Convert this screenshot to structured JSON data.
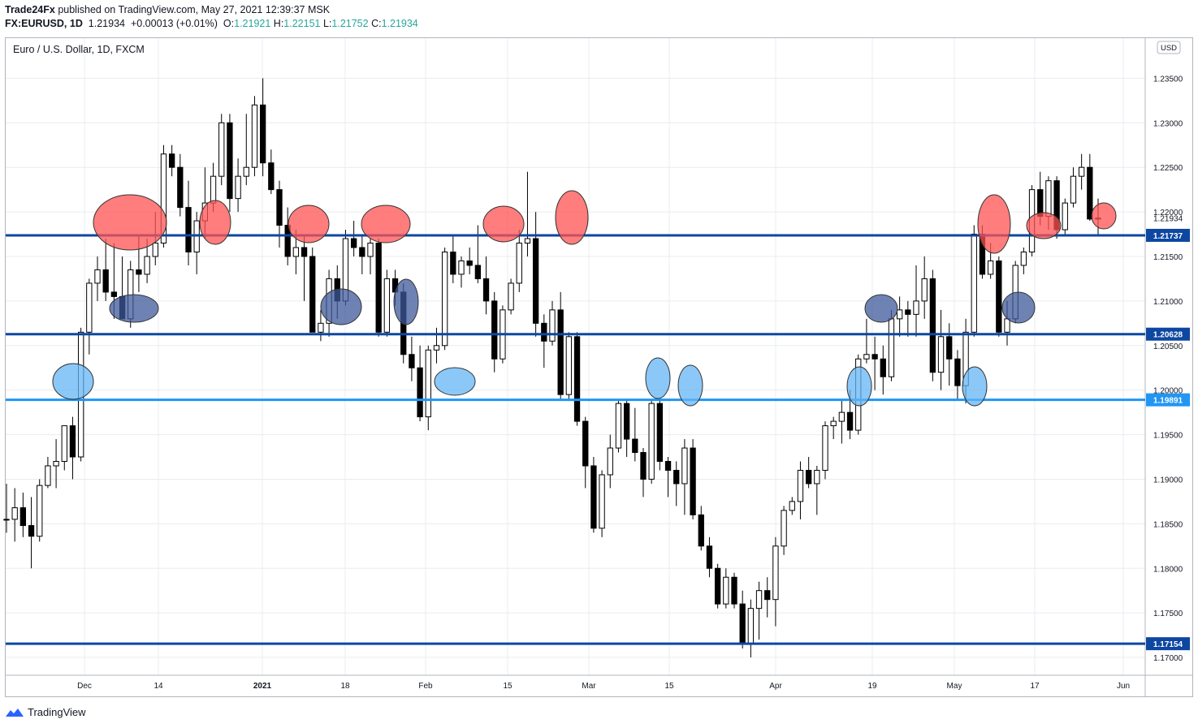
{
  "header": {
    "author": "Trade24Fx",
    "published_text": "published on TradingView.com, May 27, 2021 12:39:37 MSK",
    "symbol": "FX:EURUSD, 1D",
    "last": "1.21934",
    "change": "+0.00013 (+0.01%)",
    "o_label": "O:",
    "o": "1.21921",
    "h_label": "H:",
    "h": "1.22151",
    "l_label": "L:",
    "l": "1.21752",
    "c_label": "C:",
    "c": "1.21934"
  },
  "chart_title": "Euro / U.S. Dollar, 1D, FXCM",
  "currency_badge": "USD",
  "footer": {
    "brand": "TradingView",
    "logo_icon": "tradingview-logo-icon"
  },
  "colors": {
    "level_dark": "#0d47a1",
    "level_light": "#2196f3",
    "red_zone": "#ff5252",
    "dark_blue_zone": "#3d5a99",
    "light_blue_zone": "#64b5f6",
    "grid": "#e8ecf0"
  },
  "chart_data": {
    "type": "candlestick",
    "ylim": [
      1.168,
      1.2395
    ],
    "y_ticks": [
      "1.23500",
      "1.23000",
      "1.22500",
      "1.22000",
      "1.21500",
      "1.21000",
      "1.20500",
      "1.20000",
      "1.19500",
      "1.19000",
      "1.18500",
      "1.18000",
      "1.17500",
      "1.17000"
    ],
    "x_ticks": [
      "Dec",
      "14",
      "2021",
      "18",
      "Feb",
      "15",
      "Mar",
      "15",
      "Apr",
      "19",
      "May",
      "17",
      "Jun"
    ],
    "levels": [
      {
        "value": 1.21737,
        "label": "1.21737",
        "style": "dark"
      },
      {
        "value": 1.20628,
        "label": "1.20628",
        "style": "dark"
      },
      {
        "value": 1.19891,
        "label": "1.19891",
        "style": "light"
      },
      {
        "value": 1.17154,
        "label": "1.17154",
        "style": "dark"
      }
    ],
    "price_label": {
      "value": 1.21934,
      "label": "1.21934"
    },
    "candles": [
      [
        1.1855,
        1.1895,
        1.184,
        1.1855
      ],
      [
        1.1855,
        1.189,
        1.183,
        1.1868
      ],
      [
        1.1868,
        1.1885,
        1.1835,
        1.1848
      ],
      [
        1.1848,
        1.188,
        1.18,
        1.1836
      ],
      [
        1.1836,
        1.19,
        1.183,
        1.1893
      ],
      [
        1.1893,
        1.1925,
        1.189,
        1.1915
      ],
      [
        1.1915,
        1.1945,
        1.189,
        1.192
      ],
      [
        1.192,
        1.196,
        1.191,
        1.196
      ],
      [
        1.196,
        1.197,
        1.19,
        1.1925
      ],
      [
        1.1925,
        1.207,
        1.192,
        1.2065
      ],
      [
        1.2065,
        1.2125,
        1.204,
        1.212
      ],
      [
        1.212,
        1.215,
        1.21,
        1.2135
      ],
      [
        1.2135,
        1.217,
        1.21,
        1.211
      ],
      [
        1.211,
        1.2165,
        1.208,
        1.2105
      ],
      [
        1.2105,
        1.215,
        1.208,
        1.208
      ],
      [
        1.208,
        1.2145,
        1.207,
        1.2135
      ],
      [
        1.2135,
        1.2175,
        1.211,
        1.213
      ],
      [
        1.213,
        1.217,
        1.212,
        1.215
      ],
      [
        1.215,
        1.22,
        1.214,
        1.2165
      ],
      [
        1.2165,
        1.2275,
        1.216,
        1.2265
      ],
      [
        1.2265,
        1.2275,
        1.224,
        1.225
      ],
      [
        1.225,
        1.2265,
        1.2195,
        1.2205
      ],
      [
        1.2205,
        1.2235,
        1.214,
        1.2155
      ],
      [
        1.2155,
        1.22,
        1.213,
        1.219
      ],
      [
        1.219,
        1.225,
        1.217,
        1.221
      ],
      [
        1.221,
        1.2255,
        1.22,
        1.224
      ],
      [
        1.224,
        1.231,
        1.223,
        1.23
      ],
      [
        1.23,
        1.231,
        1.22,
        1.2215
      ],
      [
        1.2215,
        1.226,
        1.22,
        1.224
      ],
      [
        1.224,
        1.231,
        1.223,
        1.225
      ],
      [
        1.225,
        1.233,
        1.224,
        1.232
      ],
      [
        1.232,
        1.235,
        1.224,
        1.2255
      ],
      [
        1.2255,
        1.227,
        1.222,
        1.2225
      ],
      [
        1.2225,
        1.2235,
        1.216,
        1.2185
      ],
      [
        1.2185,
        1.2205,
        1.214,
        1.215
      ],
      [
        1.215,
        1.218,
        1.213,
        1.216
      ],
      [
        1.216,
        1.2175,
        1.21,
        1.215
      ],
      [
        1.215,
        1.216,
        1.207,
        1.2065
      ],
      [
        1.2065,
        1.209,
        1.2055,
        1.2075
      ],
      [
        1.2075,
        1.2135,
        1.206,
        1.2125
      ],
      [
        1.2125,
        1.214,
        1.208,
        1.21
      ],
      [
        1.21,
        1.218,
        1.2095,
        1.217
      ],
      [
        1.217,
        1.219,
        1.215,
        1.216
      ],
      [
        1.216,
        1.2175,
        1.213,
        1.215
      ],
      [
        1.215,
        1.217,
        1.213,
        1.2165
      ],
      [
        1.2165,
        1.217,
        1.206,
        1.2065
      ],
      [
        1.2065,
        1.2135,
        1.206,
        1.2125
      ],
      [
        1.2125,
        1.2135,
        1.2095,
        1.211
      ],
      [
        1.211,
        1.212,
        1.203,
        1.204
      ],
      [
        1.204,
        1.206,
        1.201,
        1.2025
      ],
      [
        1.2025,
        1.205,
        1.1965,
        1.197
      ],
      [
        1.197,
        1.205,
        1.1955,
        1.2045
      ],
      [
        1.2045,
        1.207,
        1.203,
        1.205
      ],
      [
        1.205,
        1.216,
        1.2045,
        1.2155
      ],
      [
        1.2155,
        1.2175,
        1.212,
        1.213
      ],
      [
        1.213,
        1.215,
        1.2115,
        1.2145
      ],
      [
        1.2145,
        1.216,
        1.213,
        1.214
      ],
      [
        1.214,
        1.2185,
        1.212,
        1.2125
      ],
      [
        1.2125,
        1.215,
        1.2085,
        1.21
      ],
      [
        1.21,
        1.211,
        1.202,
        1.2035
      ],
      [
        1.2035,
        1.2095,
        1.203,
        1.209
      ],
      [
        1.209,
        1.2125,
        1.2085,
        1.212
      ],
      [
        1.212,
        1.218,
        1.211,
        1.2165
      ],
      [
        1.2165,
        1.2245,
        1.215,
        1.217
      ],
      [
        1.217,
        1.22,
        1.206,
        1.2075
      ],
      [
        1.2075,
        1.2085,
        1.2025,
        1.2055
      ],
      [
        1.2055,
        1.21,
        1.205,
        1.209
      ],
      [
        1.209,
        1.211,
        1.199,
        1.1995
      ],
      [
        1.1995,
        1.2065,
        1.199,
        1.206
      ],
      [
        1.206,
        1.2065,
        1.196,
        1.1965
      ],
      [
        1.1965,
        1.197,
        1.189,
        1.1915
      ],
      [
        1.1915,
        1.1925,
        1.184,
        1.1845
      ],
      [
        1.1845,
        1.191,
        1.1835,
        1.1905
      ],
      [
        1.1905,
        1.195,
        1.189,
        1.1935
      ],
      [
        1.1935,
        1.199,
        1.193,
        1.1985
      ],
      [
        1.1985,
        1.199,
        1.1925,
        1.1945
      ],
      [
        1.1945,
        1.198,
        1.192,
        1.193
      ],
      [
        1.193,
        1.1935,
        1.188,
        1.19
      ],
      [
        1.19,
        1.199,
        1.1895,
        1.1985
      ],
      [
        1.1985,
        1.199,
        1.191,
        1.192
      ],
      [
        1.192,
        1.1925,
        1.188,
        1.191
      ],
      [
        1.191,
        1.192,
        1.187,
        1.1895
      ],
      [
        1.1895,
        1.1945,
        1.186,
        1.1935
      ],
      [
        1.1935,
        1.1945,
        1.1855,
        1.186
      ],
      [
        1.186,
        1.187,
        1.182,
        1.1825
      ],
      [
        1.1825,
        1.1835,
        1.179,
        1.18
      ],
      [
        1.18,
        1.1805,
        1.1755,
        1.176
      ],
      [
        1.176,
        1.18,
        1.1755,
        1.179
      ],
      [
        1.179,
        1.1795,
        1.1755,
        1.176
      ],
      [
        1.176,
        1.1775,
        1.171,
        1.1715
      ],
      [
        1.1715,
        1.1765,
        1.17,
        1.1755
      ],
      [
        1.1755,
        1.1785,
        1.172,
        1.1775
      ],
      [
        1.1775,
        1.179,
        1.1745,
        1.1765
      ],
      [
        1.1765,
        1.1835,
        1.1735,
        1.1825
      ],
      [
        1.1825,
        1.187,
        1.1815,
        1.1865
      ],
      [
        1.1865,
        1.188,
        1.186,
        1.1875
      ],
      [
        1.1875,
        1.192,
        1.1855,
        1.191
      ],
      [
        1.191,
        1.1925,
        1.189,
        1.1895
      ],
      [
        1.1895,
        1.1915,
        1.186,
        1.191
      ],
      [
        1.191,
        1.1965,
        1.19,
        1.196
      ],
      [
        1.196,
        1.197,
        1.1945,
        1.1965
      ],
      [
        1.1965,
        1.199,
        1.194,
        1.1975
      ],
      [
        1.1975,
        1.2,
        1.1945,
        1.1955
      ],
      [
        1.1955,
        1.204,
        1.195,
        1.2035
      ],
      [
        1.2035,
        1.208,
        1.203,
        1.204
      ],
      [
        1.204,
        1.206,
        1.2,
        1.2035
      ],
      [
        1.2035,
        1.205,
        1.1995,
        1.2015
      ],
      [
        1.2015,
        1.209,
        1.201,
        1.208
      ],
      [
        1.208,
        1.2105,
        1.206,
        1.209
      ],
      [
        1.209,
        1.21,
        1.206,
        1.2085
      ],
      [
        1.2085,
        1.214,
        1.206,
        1.21
      ],
      [
        1.21,
        1.215,
        1.208,
        1.2125
      ],
      [
        1.2125,
        1.2135,
        1.201,
        1.202
      ],
      [
        1.202,
        1.209,
        1.2,
        1.206
      ],
      [
        1.206,
        1.2075,
        1.2005,
        1.2035
      ],
      [
        1.2035,
        1.2045,
        1.199,
        1.2005
      ],
      [
        1.2005,
        1.208,
        1.1985,
        1.2065
      ],
      [
        1.2065,
        1.2185,
        1.206,
        1.2175
      ],
      [
        1.2175,
        1.2185,
        1.2125,
        1.213
      ],
      [
        1.213,
        1.2165,
        1.2125,
        1.2145
      ],
      [
        1.2145,
        1.215,
        1.206,
        1.2065
      ],
      [
        1.2065,
        1.21,
        1.205,
        1.208
      ],
      [
        1.208,
        1.2145,
        1.2075,
        1.214
      ],
      [
        1.214,
        1.216,
        1.213,
        1.2155
      ],
      [
        1.2155,
        1.223,
        1.215,
        1.2225
      ],
      [
        1.2225,
        1.2245,
        1.2185,
        1.2195
      ],
      [
        1.2195,
        1.224,
        1.218,
        1.2235
      ],
      [
        1.2235,
        1.224,
        1.217,
        1.218
      ],
      [
        1.218,
        1.2215,
        1.2175,
        1.221
      ],
      [
        1.221,
        1.225,
        1.2205,
        1.224
      ],
      [
        1.224,
        1.2265,
        1.2225,
        1.225
      ],
      [
        1.225,
        1.2265,
        1.219,
        1.2192
      ],
      [
        1.2192,
        1.2215,
        1.2175,
        1.2193
      ]
    ],
    "zones": [
      {
        "color": "red",
        "x": 160,
        "y": 274,
        "rx": 45,
        "ry": 34
      },
      {
        "color": "red",
        "x": 265,
        "y": 274,
        "rx": 19,
        "ry": 27
      },
      {
        "color": "red",
        "x": 380,
        "y": 276,
        "rx": 25,
        "ry": 23
      },
      {
        "color": "red",
        "x": 475,
        "y": 276,
        "rx": 30,
        "ry": 23
      },
      {
        "color": "red",
        "x": 620,
        "y": 276,
        "rx": 25,
        "ry": 22
      },
      {
        "color": "red",
        "x": 704,
        "y": 268,
        "rx": 20,
        "ry": 33
      },
      {
        "color": "red",
        "x": 1224,
        "y": 276,
        "rx": 20,
        "ry": 36
      },
      {
        "color": "red",
        "x": 1285,
        "y": 278,
        "rx": 21,
        "ry": 16
      },
      {
        "color": "red",
        "x": 1359,
        "y": 266,
        "rx": 15,
        "ry": 16
      },
      {
        "color": "dark",
        "x": 165,
        "y": 380,
        "rx": 30,
        "ry": 17
      },
      {
        "color": "dark",
        "x": 420,
        "y": 378,
        "rx": 25,
        "ry": 22
      },
      {
        "color": "dark",
        "x": 500,
        "y": 372,
        "rx": 15,
        "ry": 28
      },
      {
        "color": "dark",
        "x": 1085,
        "y": 380,
        "rx": 20,
        "ry": 17
      },
      {
        "color": "dark",
        "x": 1254,
        "y": 379,
        "rx": 20,
        "ry": 19
      },
      {
        "color": "light",
        "x": 90,
        "y": 470,
        "rx": 25,
        "ry": 22
      },
      {
        "color": "light",
        "x": 560,
        "y": 470,
        "rx": 25,
        "ry": 17
      },
      {
        "color": "light",
        "x": 810,
        "y": 466,
        "rx": 15,
        "ry": 25
      },
      {
        "color": "light",
        "x": 850,
        "y": 475,
        "rx": 15,
        "ry": 25
      },
      {
        "color": "light",
        "x": 1058,
        "y": 476,
        "rx": 15,
        "ry": 24
      },
      {
        "color": "light",
        "x": 1200,
        "y": 476,
        "rx": 15,
        "ry": 24
      }
    ]
  }
}
